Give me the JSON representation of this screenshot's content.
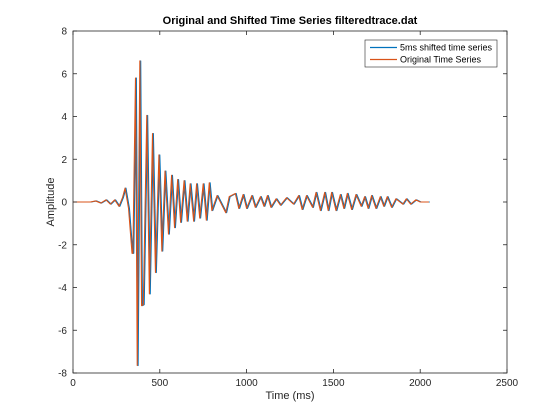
{
  "chart_data": {
    "type": "line",
    "title": "Original and Shifted Time Series filteredtrace.dat",
    "xlabel": "Time (ms)",
    "ylabel": "Amplitude",
    "xlim": [
      0,
      2500
    ],
    "ylim": [
      -8,
      8
    ],
    "xticks": [
      "0",
      "500",
      "1000",
      "1500",
      "2000",
      "2500"
    ],
    "yticks": [
      "-8",
      "-6",
      "-4",
      "-2",
      "0",
      "2",
      "4",
      "6",
      "8"
    ],
    "grid": false,
    "legend_position": "top-right",
    "series": [
      {
        "name": "5ms shifted time series",
        "color": "#0072BD",
        "shift_ms": 5,
        "x": [
          0,
          100,
          130,
          160,
          190,
          215,
          240,
          265,
          285,
          300,
          320,
          340,
          345,
          360,
          370,
          385,
          395,
          405,
          425,
          440,
          458,
          475,
          495,
          512,
          530,
          550,
          568,
          585,
          603,
          620,
          640,
          658,
          675,
          695,
          712,
          730,
          750,
          768,
          785,
          800,
          830,
          880,
          900,
          935,
          955,
          980,
          1000,
          1030,
          1050,
          1080,
          1100,
          1120,
          1140,
          1170,
          1195,
          1230,
          1270,
          1300,
          1320,
          1345,
          1380,
          1400,
          1425,
          1450,
          1470,
          1490,
          1515,
          1540,
          1560,
          1580,
          1605,
          1630,
          1660,
          1680,
          1700,
          1720,
          1745,
          1770,
          1790,
          1810,
          1835,
          1860,
          1900,
          1920,
          1945,
          1975,
          2000,
          2030,
          2050
        ],
        "y": [
          0,
          0,
          0.05,
          -0.05,
          0.1,
          -0.1,
          0.1,
          -0.2,
          0.2,
          0.65,
          -0.3,
          -2.4,
          -2.4,
          5.8,
          -7.65,
          6.6,
          -4.85,
          -4.8,
          4.05,
          -4.3,
          3.2,
          -3.3,
          2.2,
          -2.3,
          1.45,
          -1.5,
          1.25,
          -1.2,
          1.05,
          -0.95,
          1.0,
          -0.9,
          0.85,
          -0.9,
          0.85,
          -0.75,
          0.85,
          -0.85,
          0.9,
          -0.4,
          0.3,
          -0.5,
          0.25,
          0.4,
          -0.3,
          0.35,
          -0.3,
          0.3,
          -0.25,
          0.25,
          -0.2,
          0.3,
          -0.25,
          0.15,
          -0.15,
          0.2,
          -0.1,
          0.3,
          -0.35,
          0.3,
          -0.25,
          0.45,
          -0.4,
          0.45,
          -0.4,
          0.45,
          -0.4,
          0.35,
          -0.3,
          0.4,
          -0.35,
          0.35,
          -0.2,
          0.25,
          -0.3,
          0.3,
          -0.3,
          0.25,
          -0.2,
          0.25,
          -0.25,
          0.15,
          -0.1,
          0.15,
          -0.1,
          0.1,
          0,
          0,
          0
        ]
      },
      {
        "name": "Original Time Series",
        "color": "#D95319",
        "shift_ms": 0,
        "x": [
          0,
          100,
          130,
          160,
          190,
          215,
          240,
          265,
          285,
          300,
          320,
          340,
          345,
          360,
          370,
          385,
          395,
          405,
          425,
          440,
          458,
          475,
          495,
          512,
          530,
          550,
          568,
          585,
          603,
          620,
          640,
          658,
          675,
          695,
          712,
          730,
          750,
          768,
          785,
          800,
          830,
          880,
          900,
          935,
          955,
          980,
          1000,
          1030,
          1050,
          1080,
          1100,
          1120,
          1140,
          1170,
          1195,
          1230,
          1270,
          1300,
          1320,
          1345,
          1380,
          1400,
          1425,
          1450,
          1470,
          1490,
          1515,
          1540,
          1560,
          1580,
          1605,
          1630,
          1660,
          1680,
          1700,
          1720,
          1745,
          1770,
          1790,
          1810,
          1835,
          1860,
          1900,
          1920,
          1945,
          1975,
          2000,
          2030,
          2050
        ],
        "y": [
          0,
          0,
          0.05,
          -0.05,
          0.1,
          -0.1,
          0.1,
          -0.2,
          0.2,
          0.65,
          -0.3,
          -2.4,
          -2.4,
          5.8,
          -7.65,
          6.6,
          -4.85,
          -4.8,
          4.05,
          -4.3,
          3.2,
          -3.3,
          2.2,
          -2.3,
          1.45,
          -1.5,
          1.25,
          -1.2,
          1.05,
          -0.95,
          1.0,
          -0.9,
          0.85,
          -0.9,
          0.85,
          -0.75,
          0.85,
          -0.85,
          0.9,
          -0.4,
          0.3,
          -0.5,
          0.25,
          0.4,
          -0.3,
          0.35,
          -0.3,
          0.3,
          -0.25,
          0.25,
          -0.2,
          0.3,
          -0.25,
          0.15,
          -0.15,
          0.2,
          -0.1,
          0.3,
          -0.35,
          0.3,
          -0.25,
          0.45,
          -0.4,
          0.45,
          -0.4,
          0.45,
          -0.4,
          0.35,
          -0.3,
          0.4,
          -0.35,
          0.35,
          -0.2,
          0.25,
          -0.3,
          0.3,
          -0.3,
          0.25,
          -0.2,
          0.25,
          -0.25,
          0.15,
          -0.1,
          0.15,
          -0.1,
          0.1,
          0,
          0,
          0
        ]
      }
    ]
  }
}
